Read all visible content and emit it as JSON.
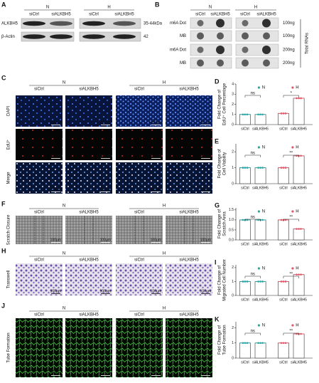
{
  "A": {
    "label": "A",
    "groups": [
      "N",
      "H"
    ],
    "lanes": [
      "siCtrl",
      "siALKBH5",
      "siCtrl",
      "siALKBH5"
    ],
    "rows": [
      {
        "name": "ALKBH5",
        "size": "35-44kDa"
      },
      {
        "name": "β-Actin",
        "size": "42"
      }
    ]
  },
  "B": {
    "label": "B",
    "groups": [
      "N",
      "H"
    ],
    "lanes": [
      "siCtrl",
      "siALKBH5",
      "siCtrl",
      "siALKBH5"
    ],
    "rows": [
      {
        "name": "m6A Dot",
        "amount": "100ng"
      },
      {
        "name": "MB",
        "amount": "100ng"
      },
      {
        "name": "m6A Dot",
        "amount": "200ng"
      },
      {
        "name": "MB",
        "amount": "200ng"
      }
    ],
    "side": "Total RNAs"
  },
  "C": {
    "label": "C",
    "groups": [
      "N",
      "H"
    ],
    "lanes": [
      "siCtrl",
      "siALKBH5",
      "siCtrl",
      "siALKBH5"
    ],
    "rows": [
      "DAPI",
      "EdU⁺",
      "Merge"
    ],
    "scale": "200μm"
  },
  "F": {
    "label": "F",
    "groups": [
      "N",
      "H"
    ],
    "lanes": [
      "siCtrl",
      "siALKBH5",
      "siCtrl",
      "siALKBH5"
    ],
    "rows": [
      "Scratch Closure"
    ],
    "scale": "100μm"
  },
  "H": {
    "label": "H",
    "groups": [
      "N",
      "H"
    ],
    "lanes": [
      "siCtrl",
      "siALKBH5",
      "siCtrl",
      "siALKBH5"
    ],
    "rows": [
      "Transwell"
    ],
    "scale": "100μm"
  },
  "J": {
    "label": "J",
    "groups": [
      "N",
      "H"
    ],
    "lanes": [
      "siCtrl",
      "siALKBH5",
      "siCtrl",
      "siALKBH5"
    ],
    "rows": [
      "Tube Formation"
    ],
    "scale": "500μm"
  },
  "chart_data": [
    {
      "type": "bar",
      "panel": "D",
      "ylabel": [
        "Fold Change of",
        "EdU⁺ Cell Percentage"
      ],
      "categories": [
        "siCtrl",
        "siALKBH5",
        "siCtrl",
        "siALKBH5"
      ],
      "series": [
        {
          "name": "N",
          "color": "#2aa6a3",
          "values": [
            1.0,
            1.0,
            null,
            null
          ]
        },
        {
          "name": "H",
          "color": "#e05a6a",
          "values": [
            null,
            null,
            1.1,
            2.6
          ]
        }
      ],
      "annotations": [
        "ns",
        "*"
      ],
      "ylim": [
        0,
        4
      ],
      "yticks": [
        0,
        1,
        2,
        3,
        4
      ]
    },
    {
      "type": "bar",
      "panel": "E",
      "ylabel": [
        "Fold Change of",
        "Cell Viability"
      ],
      "categories": [
        "siCtrl",
        "siALKBH5",
        "siCtrl",
        "siALKBH5"
      ],
      "series": [
        {
          "name": "N",
          "color": "#2aa6a3",
          "values": [
            1.0,
            1.0,
            null,
            null
          ]
        },
        {
          "name": "H",
          "color": "#e05a6a",
          "values": [
            null,
            null,
            1.0,
            1.75
          ]
        }
      ],
      "annotations": [
        "ns",
        "**"
      ],
      "ylim": [
        0,
        2.5
      ],
      "yticks": [
        0,
        1,
        2
      ]
    },
    {
      "type": "bar",
      "panel": "G",
      "ylabel": [
        "Fold Change of",
        "Scratch Area"
      ],
      "categories": [
        "siCtrl",
        "siALKBH5",
        "siCtrl",
        "siALKBH5"
      ],
      "series": [
        {
          "name": "N",
          "color": "#2aa6a3",
          "values": [
            1.0,
            1.0,
            null,
            null
          ]
        },
        {
          "name": "H",
          "color": "#e05a6a",
          "values": [
            null,
            null,
            1.0,
            0.55
          ]
        }
      ],
      "annotations": [
        "ns",
        "**"
      ],
      "ylim": [
        0,
        1.6
      ],
      "yticks": [
        {
          "value": 0,
          "label": "0.0"
        },
        0.5,
        {
          "value": 1,
          "label": "1.0"
        },
        1.5
      ]
    },
    {
      "type": "bar",
      "panel": "I",
      "ylabel": [
        "Fold Change of",
        "Migrated Cell Number"
      ],
      "categories": [
        "siCtrl",
        "siALKBH5",
        "siCtrl",
        "siALKBH5"
      ],
      "series": [
        {
          "name": "N",
          "color": "#2aa6a3",
          "values": [
            1.0,
            1.0,
            null,
            null
          ]
        },
        {
          "name": "H",
          "color": "#e05a6a",
          "values": [
            null,
            null,
            1.0,
            1.5
          ]
        }
      ],
      "annotations": [
        "ns",
        "**"
      ],
      "ylim": [
        0,
        2.2
      ],
      "yticks": [
        0,
        1,
        2
      ]
    },
    {
      "type": "bar",
      "panel": "K",
      "ylabel": [
        "Fold Change of",
        "Tube Formation"
      ],
      "categories": [
        "siCtrl",
        "siALKBH5",
        "siCtrl",
        "siALKBH5"
      ],
      "series": [
        {
          "name": "N",
          "color": "#2aa6a3",
          "values": [
            1.0,
            1.0,
            null,
            null
          ]
        },
        {
          "name": "H",
          "color": "#e05a6a",
          "values": [
            null,
            null,
            1.0,
            1.6
          ]
        }
      ],
      "annotations": [
        "ns",
        "**"
      ],
      "ylim": [
        0,
        2.4
      ],
      "yticks": [
        0,
        1,
        2
      ]
    }
  ]
}
